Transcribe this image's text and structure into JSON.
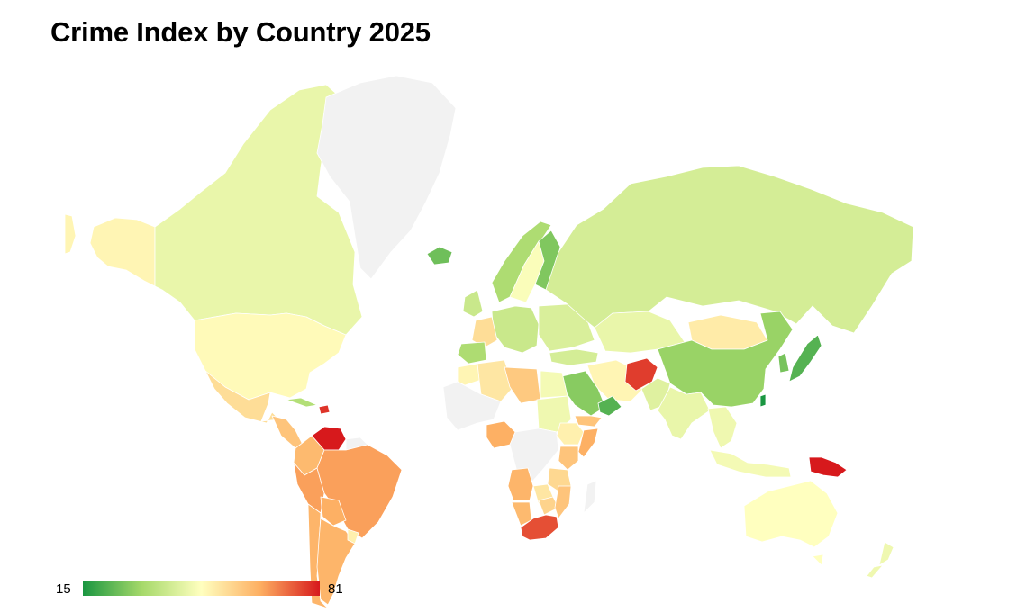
{
  "title": "Crime Index by Country 2025",
  "legend": {
    "min_label": "15",
    "max_label": "81",
    "min": 15,
    "max": 81,
    "colors": [
      "#1a9641",
      "#a6d96a",
      "#ffffbf",
      "#fdae61",
      "#d7191c"
    ]
  },
  "no_data_color": "#f2f2f2",
  "map_data": {
    "type": "choropleth",
    "metric": "Crime Index",
    "regions": [
      {
        "name": "Alaska",
        "value": 50
      },
      {
        "name": "Canada",
        "value": 44
      },
      {
        "name": "Greenland",
        "value": null
      },
      {
        "name": "United States",
        "value": 49
      },
      {
        "name": "Mexico",
        "value": 55
      },
      {
        "name": "Central America",
        "value": 60
      },
      {
        "name": "Cuba",
        "value": 34
      },
      {
        "name": "Haiti",
        "value": 78
      },
      {
        "name": "Venezuela",
        "value": 81
      },
      {
        "name": "Guyana",
        "value": null
      },
      {
        "name": "Colombia",
        "value": 62
      },
      {
        "name": "Peru",
        "value": 66
      },
      {
        "name": "Brazil",
        "value": 66
      },
      {
        "name": "Bolivia",
        "value": 64
      },
      {
        "name": "Argentina",
        "value": 63
      },
      {
        "name": "Uruguay",
        "value": 51
      },
      {
        "name": "Chile",
        "value": 63
      },
      {
        "name": "Iceland",
        "value": 25
      },
      {
        "name": "Norway",
        "value": 33
      },
      {
        "name": "Sweden",
        "value": 47
      },
      {
        "name": "Finland",
        "value": 27
      },
      {
        "name": "Western Europe",
        "value": 38
      },
      {
        "name": "France",
        "value": 55
      },
      {
        "name": "Iberia",
        "value": 33
      },
      {
        "name": "Eastern Europe",
        "value": 41
      },
      {
        "name": "Russia",
        "value": 40
      },
      {
        "name": "Kazakhstan",
        "value": 44
      },
      {
        "name": "Mongolia",
        "value": 52
      },
      {
        "name": "China",
        "value": 30
      },
      {
        "name": "Japan",
        "value": 22
      },
      {
        "name": "Korea",
        "value": 26
      },
      {
        "name": "Taiwan",
        "value": 15
      },
      {
        "name": "Turkey",
        "value": 40
      },
      {
        "name": "Iran",
        "value": 50
      },
      {
        "name": "Afghanistan",
        "value": 77
      },
      {
        "name": "Pakistan",
        "value": 42
      },
      {
        "name": "India",
        "value": 44
      },
      {
        "name": "Southeast Asia",
        "value": 45
      },
      {
        "name": "Indonesia",
        "value": 46
      },
      {
        "name": "Saudi Arabia",
        "value": 28
      },
      {
        "name": "Oman",
        "value": 22
      },
      {
        "name": "Yemen",
        "value": 60
      },
      {
        "name": "Papua New Guinea",
        "value": 81
      },
      {
        "name": "Australia",
        "value": 48
      },
      {
        "name": "New Zealand",
        "value": 45
      },
      {
        "name": "Morocco",
        "value": 50
      },
      {
        "name": "Algeria",
        "value": 53
      },
      {
        "name": "Libya",
        "value": 59
      },
      {
        "name": "Egypt",
        "value": 46
      },
      {
        "name": "Sudan",
        "value": 45
      },
      {
        "name": "West Africa",
        "value": null
      },
      {
        "name": "Nigeria",
        "value": 64
      },
      {
        "name": "Central Africa",
        "value": null
      },
      {
        "name": "Ethiopia",
        "value": 51
      },
      {
        "name": "Somalia",
        "value": 64
      },
      {
        "name": "Kenya",
        "value": 60
      },
      {
        "name": "Tanzania",
        "value": 56
      },
      {
        "name": "Angola",
        "value": 63
      },
      {
        "name": "Namibia",
        "value": 62
      },
      {
        "name": "Zambia",
        "value": 53
      },
      {
        "name": "Zimbabwe",
        "value": 57
      },
      {
        "name": "Mozambique",
        "value": 60
      },
      {
        "name": "South Africa",
        "value": 75
      },
      {
        "name": "Madagascar",
        "value": null
      }
    ]
  }
}
